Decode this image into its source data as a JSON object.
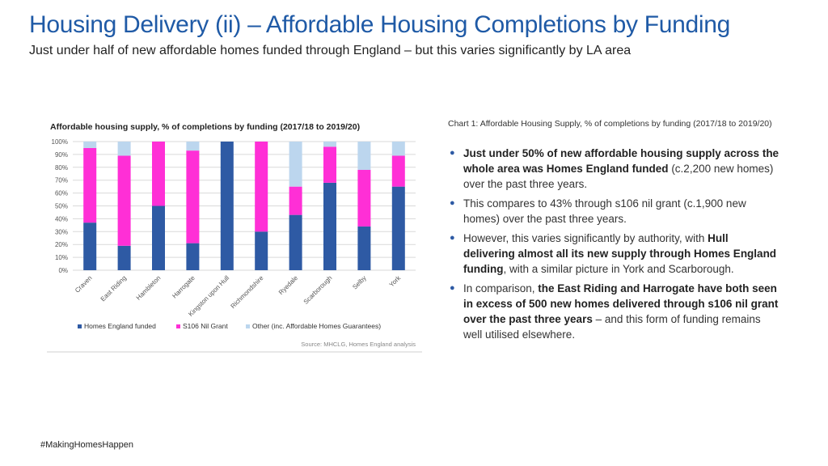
{
  "header": {
    "title": "Housing Delivery (ii) – Affordable Housing Completions by Funding",
    "subtitle": "Just under half of new affordable homes funded through England – but this varies significantly by LA area"
  },
  "chart_data": {
    "type": "bar",
    "stacked": true,
    "title": "Affordable housing supply, % of completions by funding (2017/18 to 2019/20)",
    "xlabel": "",
    "ylabel": "",
    "ylim": [
      0,
      100
    ],
    "yticks": [
      "0%",
      "10%",
      "20%",
      "30%",
      "40%",
      "50%",
      "60%",
      "70%",
      "80%",
      "90%",
      "100%"
    ],
    "categories": [
      "Craven",
      "East Riding",
      "Hambleton",
      "Harrogate",
      "Kingston upon Hull",
      "Richmondshire",
      "Ryedale",
      "Scarborough",
      "Selby",
      "York"
    ],
    "series": [
      {
        "name": "Homes England funded",
        "color": "#2e5aa4",
        "values": [
          37,
          19,
          50,
          21,
          100,
          30,
          43,
          68,
          34,
          65
        ]
      },
      {
        "name": "S106 Nil Grant",
        "color": "#ff2fd6",
        "values": [
          58,
          70,
          50,
          72,
          0,
          70,
          22,
          28,
          44,
          24
        ]
      },
      {
        "name": "Other (inc. Affordable Homes Guarantees)",
        "color": "#bcd6ee",
        "values": [
          5,
          11,
          0,
          7,
          0,
          0,
          35,
          4,
          22,
          11
        ]
      }
    ],
    "legend_position": "bottom",
    "source": "Source: MHCLG, Homes England analysis"
  },
  "commentary": {
    "caption": "Chart 1: Affordable Housing Supply, % of completions by funding (2017/18 to 2019/20)",
    "bullets": [
      {
        "strong": "Just under 50% of new affordable housing supply across the whole area was Homes England funded",
        "text": " (c.2,200 new homes) over the past three years.",
        "text2": ""
      },
      {
        "strong": "",
        "text": "This compares to 43% through s106 nil grant (c.1,900 new homes) over the past three years.",
        "text2": ""
      },
      {
        "pre": "However, this varies significantly by authority, with ",
        "strong": "Hull delivering almost all its new supply through Homes England funding",
        "text": ", with a similar picture in York and Scarborough.",
        "text2": ""
      },
      {
        "pre": "In comparison, ",
        "strong": "the East Riding and Harrogate have both seen in excess of 500 new homes delivered through s106 nil grant over the past three years",
        "text": " – and this form of funding remains well utilised elsewhere.",
        "text2": ""
      }
    ],
    "bullet_glyph": "●"
  },
  "footer": {
    "hashtag": "#MakingHomesHappen"
  }
}
